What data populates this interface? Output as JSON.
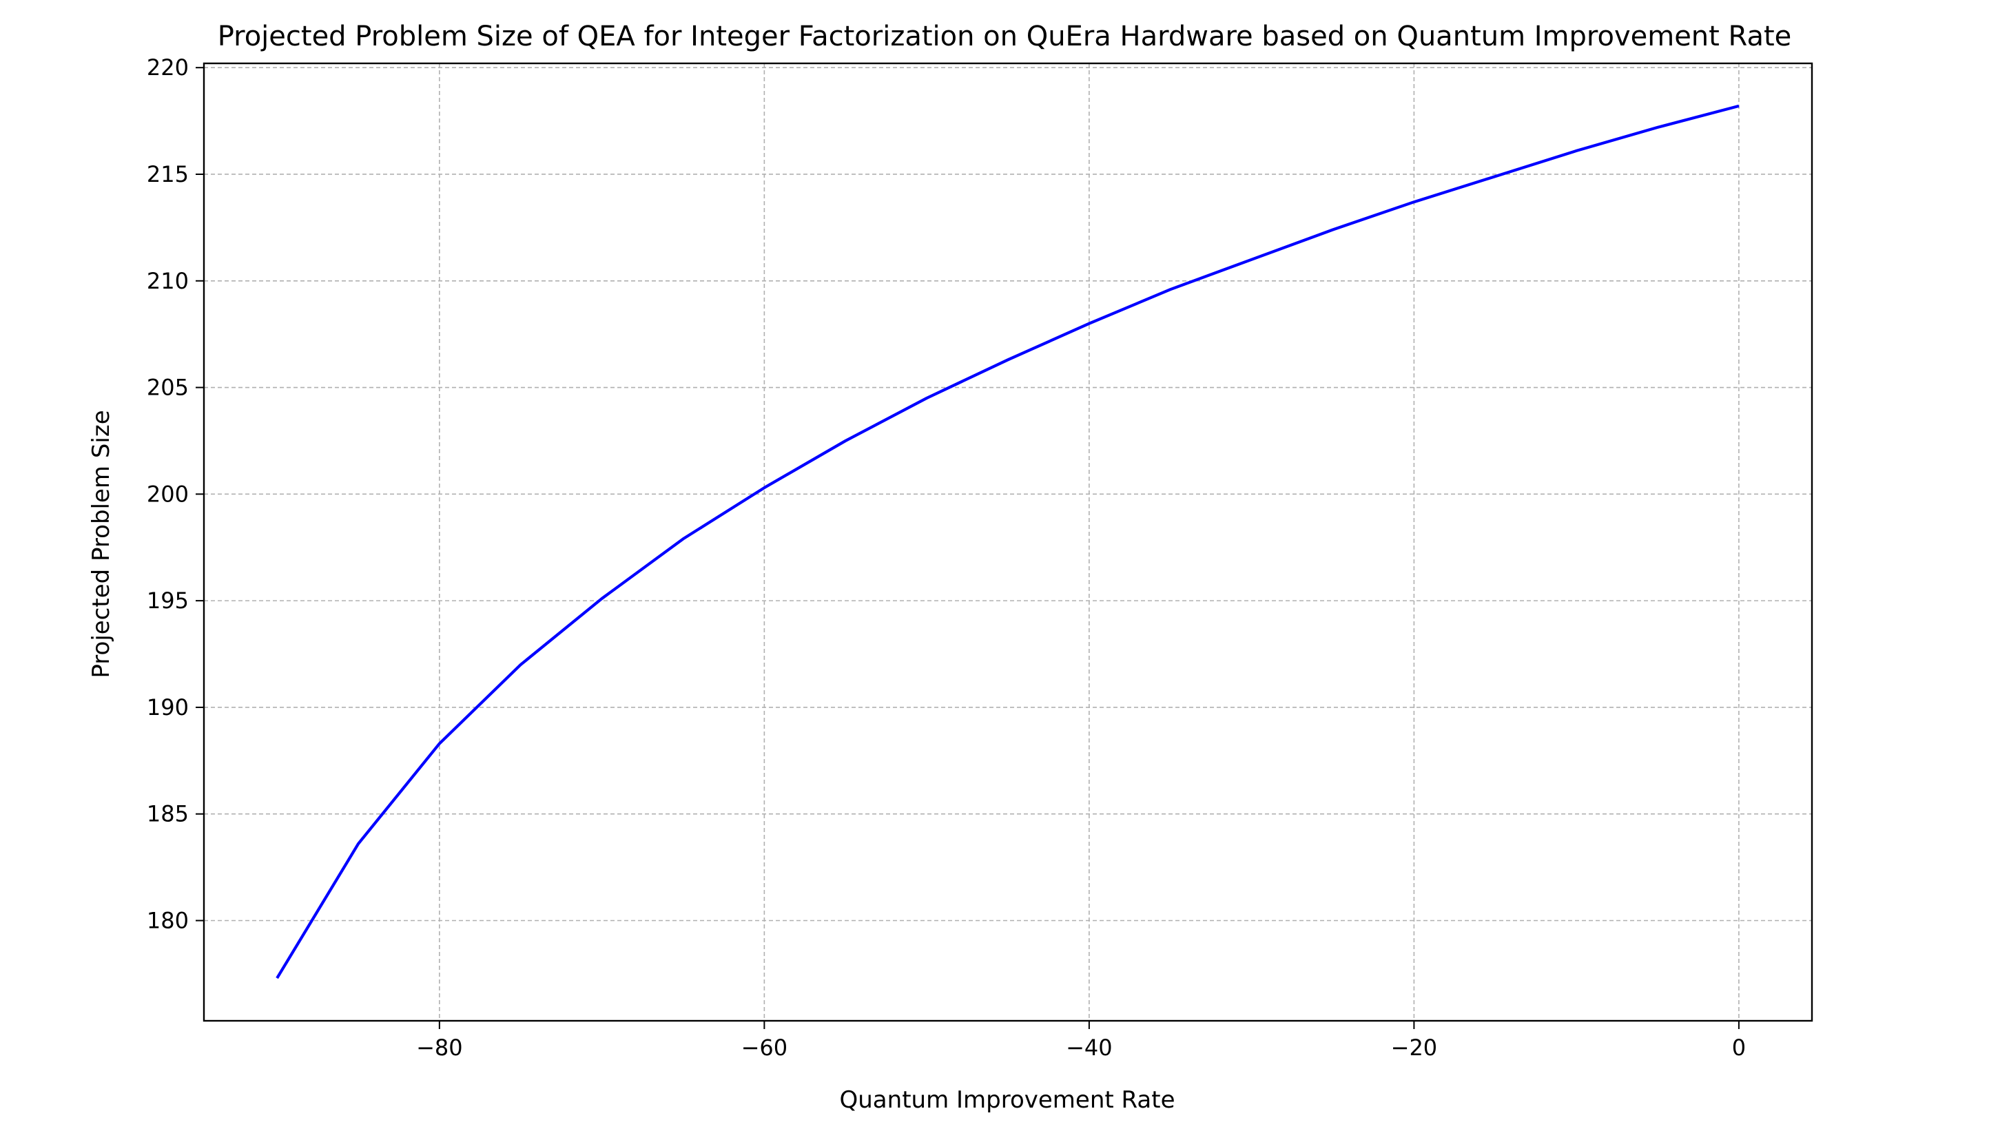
{
  "chart_data": {
    "type": "line",
    "title": "Projected Problem Size of QEA for Integer Factorization on QuEra Hardware based on Quantum Improvement Rate",
    "xlabel": "Quantum Improvement Rate",
    "ylabel": "Projected Problem Size",
    "xlim": [
      -94.5,
      4.5
    ],
    "ylim": [
      175.3,
      220.2
    ],
    "x_ticks": [
      -80,
      -60,
      -40,
      -20,
      0
    ],
    "x_tick_labels": [
      "−80",
      "−60",
      "−40",
      "−20",
      "0"
    ],
    "y_ticks": [
      180,
      185,
      190,
      195,
      200,
      205,
      210,
      215,
      220
    ],
    "y_tick_labels": [
      "180",
      "185",
      "190",
      "195",
      "200",
      "205",
      "210",
      "215",
      "220"
    ],
    "grid": true,
    "series": [
      {
        "color": "#0000ff",
        "x": [
          -90,
          -85,
          -80,
          -75,
          -70,
          -65,
          -60,
          -55,
          -50,
          -45,
          -40,
          -35,
          -30,
          -25,
          -20,
          -15,
          -10,
          -5,
          0
        ],
        "y": [
          177.3,
          183.6,
          188.3,
          192.0,
          195.1,
          197.9,
          200.3,
          202.5,
          204.5,
          206.3,
          208.0,
          209.6,
          211.0,
          212.4,
          213.7,
          214.9,
          216.1,
          217.2,
          218.2
        ]
      }
    ]
  }
}
